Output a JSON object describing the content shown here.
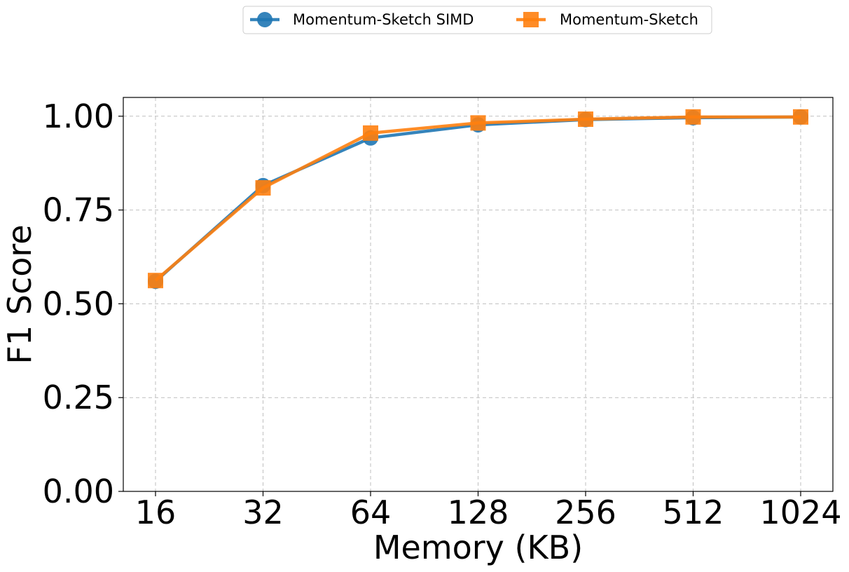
{
  "chart_data": {
    "type": "line",
    "title": "",
    "xlabel": "Memory (KB)",
    "ylabel": "F1 Score",
    "categories": [
      "16",
      "32",
      "64",
      "128",
      "256",
      "512",
      "1024"
    ],
    "x_scale": "log2",
    "ylim": [
      0,
      1.05
    ],
    "yticks": [
      "0.00",
      "0.25",
      "0.50",
      "0.75",
      "1.00"
    ],
    "ytick_values": [
      0,
      0.25,
      0.5,
      0.75,
      1.0
    ],
    "grid": true,
    "legend": {
      "placement": "top-center",
      "entries": [
        "Momentum-Sketch SIMD",
        "Momentum-Sketch"
      ]
    },
    "series": [
      {
        "name": "Momentum-Sketch SIMD",
        "color": "#1f77b4",
        "marker": "circle",
        "values": [
          0.56,
          0.815,
          0.942,
          0.977,
          0.991,
          0.996,
          0.998
        ]
      },
      {
        "name": "Momentum-Sketch",
        "color": "#ff7f0e",
        "marker": "square",
        "values": [
          0.562,
          0.809,
          0.955,
          0.982,
          0.992,
          0.998,
          0.998
        ]
      }
    ]
  }
}
